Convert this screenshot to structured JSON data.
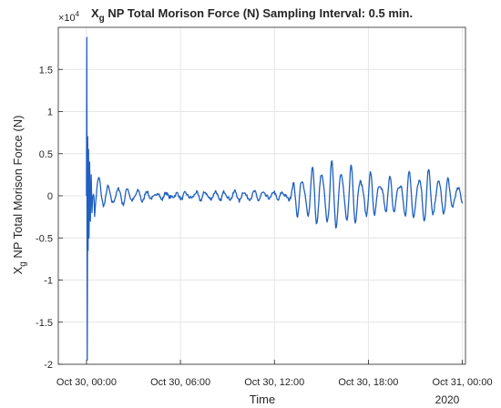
{
  "chart_data": {
    "type": "line",
    "title_prefix": "X",
    "title_subscript": "g",
    "title_rest": " NP Total Morison Force (N) Sampling Interval: 0.5 min.",
    "ylabel_prefix": "X",
    "ylabel_subscript": "g",
    "ylabel_rest": " NP Total Morison Force (N)",
    "xlabel": "Time",
    "x_secondary_label": "2020",
    "exponent_base": "×10",
    "exponent_power": "4",
    "y_multiplier": 10000,
    "ylim": [
      -2,
      2
    ],
    "yticks": [
      "-2",
      "-1.5",
      "-1",
      "-0.5",
      "0",
      "0.5",
      "1",
      "1.5"
    ],
    "xlim_hours": [
      -1.8,
      24.2
    ],
    "xticks": [
      "Oct 30, 00:00",
      "Oct 30, 06:00",
      "Oct 30, 12:00",
      "Oct 30, 18:00",
      "Oct 31, 00:00"
    ],
    "grid": true,
    "line_color": "#2060c0",
    "series": [
      {
        "x": [
          "Oct 30, 00:00",
          "Oct 30, 00:05",
          "Oct 30, 00:10",
          "Oct 30, 00:20",
          "Oct 30, 00:30",
          "Oct 30, 01:00",
          "Oct 30, 03:00",
          "Oct 30, 06:00",
          "Oct 30, 09:00",
          "Oct 30, 12:00",
          "Oct 30, 13:00",
          "Oct 30, 13:30",
          "Oct 30, 16:00",
          "Oct 30, 18:00",
          "Oct 30, 21:00",
          "Oct 31, 00:00"
        ],
        "y": [
          0,
          1.88,
          -1.95,
          0.75,
          -0.5,
          0.1,
          0.08,
          0.05,
          0.05,
          0.07,
          0.1,
          0.3,
          0.33,
          0.33,
          0.33,
          0.1
        ]
      }
    ]
  }
}
